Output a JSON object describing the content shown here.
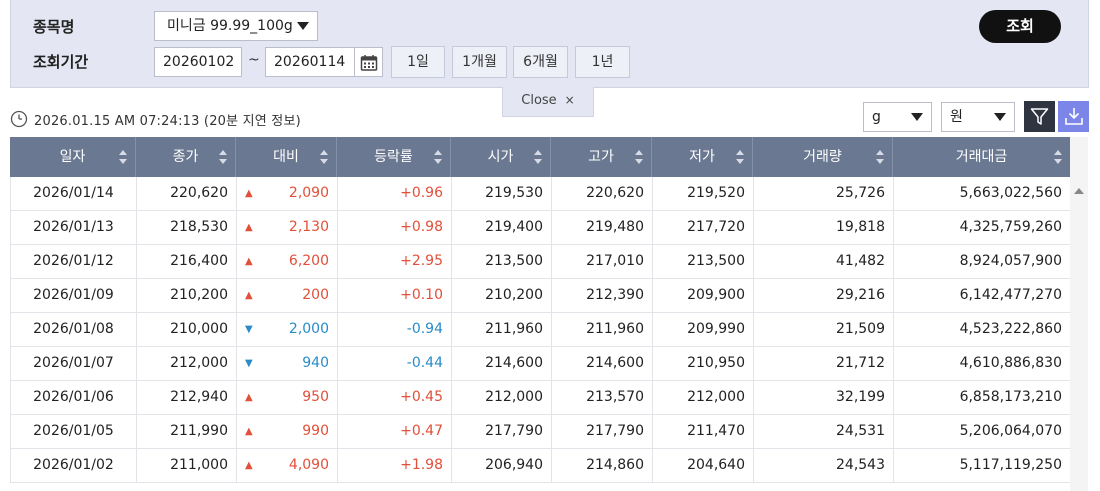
{
  "search": {
    "item_label": "종목명",
    "item_selected": "미니금 99.99_100g",
    "period_label": "조회기간",
    "date_from": "20260102",
    "date_to": "20260114",
    "tilde": "~",
    "period_buttons": [
      "1일",
      "1개월",
      "6개월",
      "1년"
    ],
    "query_button": "조회",
    "close_label": "Close",
    "close_x": "×"
  },
  "info": {
    "timestamp": "2026.01.15 AM 07:24:13 (20분 지연 정보)",
    "unit_weight": "g",
    "unit_currency": "원"
  },
  "table": {
    "headers": [
      "일자",
      "종가",
      "대비",
      "등락률",
      "시가",
      "고가",
      "저가",
      "거래량",
      "거래대금"
    ],
    "rows": [
      {
        "date": "2026/01/14",
        "close": "220,620",
        "dir": "up",
        "change": "2,090",
        "rate": "+0.96",
        "open": "219,530",
        "high": "220,620",
        "low": "219,520",
        "volume": "25,726",
        "amount": "5,663,022,560"
      },
      {
        "date": "2026/01/13",
        "close": "218,530",
        "dir": "up",
        "change": "2,130",
        "rate": "+0.98",
        "open": "219,400",
        "high": "219,480",
        "low": "217,720",
        "volume": "19,818",
        "amount": "4,325,759,260"
      },
      {
        "date": "2026/01/12",
        "close": "216,400",
        "dir": "up",
        "change": "6,200",
        "rate": "+2.95",
        "open": "213,500",
        "high": "217,010",
        "low": "213,500",
        "volume": "41,482",
        "amount": "8,924,057,900"
      },
      {
        "date": "2026/01/09",
        "close": "210,200",
        "dir": "up",
        "change": "200",
        "rate": "+0.10",
        "open": "210,200",
        "high": "212,390",
        "low": "209,900",
        "volume": "29,216",
        "amount": "6,142,477,270"
      },
      {
        "date": "2026/01/08",
        "close": "210,000",
        "dir": "down",
        "change": "2,000",
        "rate": "-0.94",
        "open": "211,960",
        "high": "211,960",
        "low": "209,990",
        "volume": "21,509",
        "amount": "4,523,222,860"
      },
      {
        "date": "2026/01/07",
        "close": "212,000",
        "dir": "down",
        "change": "940",
        "rate": "-0.44",
        "open": "214,600",
        "high": "214,600",
        "low": "210,950",
        "volume": "21,712",
        "amount": "4,610,886,830"
      },
      {
        "date": "2026/01/06",
        "close": "212,940",
        "dir": "up",
        "change": "950",
        "rate": "+0.45",
        "open": "212,000",
        "high": "213,570",
        "low": "212,000",
        "volume": "32,199",
        "amount": "6,858,173,210"
      },
      {
        "date": "2026/01/05",
        "close": "211,990",
        "dir": "up",
        "change": "990",
        "rate": "+0.47",
        "open": "217,790",
        "high": "217,790",
        "low": "211,470",
        "volume": "24,531",
        "amount": "5,206,064,070"
      },
      {
        "date": "2026/01/02",
        "close": "211,000",
        "dir": "up",
        "change": "4,090",
        "rate": "+1.98",
        "open": "206,940",
        "high": "214,860",
        "low": "204,640",
        "volume": "24,543",
        "amount": "5,117,119,250"
      }
    ]
  },
  "colors": {
    "up": "#e0503a",
    "down": "#2a8bc7",
    "header_bg": "#6b7891",
    "panel_bg": "#e4e7f3"
  }
}
